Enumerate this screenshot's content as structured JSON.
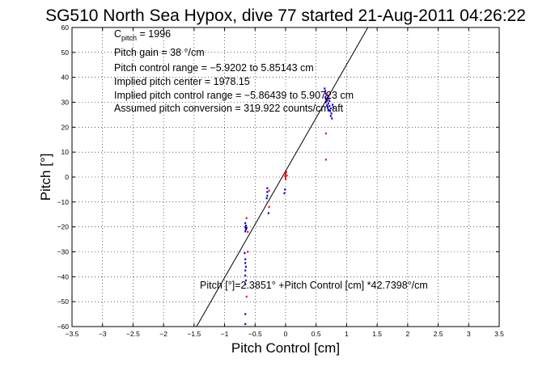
{
  "chart_data": {
    "type": "scatter",
    "title": "SG510 North Sea Hypox, dive 77 started 21-Aug-2011 04:26:22",
    "xlabel": "Pitch Control [cm]",
    "ylabel": "Pitch [°]",
    "xlim": [
      -3.5,
      3.5
    ],
    "ylim": [
      -60,
      60
    ],
    "xticks": [
      -3.5,
      -3,
      -2.5,
      -2,
      -1.5,
      -1,
      -0.5,
      0,
      0.5,
      1,
      1.5,
      2,
      2.5,
      3,
      3.5
    ],
    "yticks": [
      -60,
      -50,
      -40,
      -30,
      -20,
      -10,
      0,
      10,
      20,
      30,
      40,
      50,
      60
    ],
    "grid": true,
    "annotations": {
      "cpitch_prefix": "C",
      "cpitch_sub": "pitch",
      "cpitch_value": " = 1996",
      "gain": "Pitch gain = 38 °/cm",
      "control_range": "Pitch control range = −5.9202 to 5.85143 cm",
      "implied_center": "Implied pitch center = 1978.15",
      "implied_range": "Implied pitch control range = −5.86439 to 5.90723 cm",
      "conversion": "Assumed pitch conversion = 319.922 counts/cm aft"
    },
    "fit_label": "Pitch [°]=2.3851° +Pitch Control [cm] *42.7398°/cm",
    "fit": {
      "intercept": 2.3851,
      "slope": 42.7398,
      "color": "#000000"
    },
    "series": [
      {
        "color": "#0000cc",
        "points": [
          [
            -0.66,
            -18.5
          ],
          [
            -0.65,
            -19.5
          ],
          [
            -0.66,
            -20.2
          ],
          [
            -0.65,
            -21
          ],
          [
            -0.66,
            -21.8
          ],
          [
            -0.64,
            -20.5
          ],
          [
            -0.67,
            -30.5
          ],
          [
            -0.66,
            -33
          ],
          [
            -0.66,
            -34.5
          ],
          [
            -0.65,
            -36
          ],
          [
            -0.66,
            -37.5
          ],
          [
            -0.66,
            -39.5
          ],
          [
            -0.65,
            -41.5
          ],
          [
            -0.66,
            -43
          ],
          [
            -0.66,
            -55
          ],
          [
            -0.66,
            -59
          ],
          [
            -0.3,
            -4.5
          ],
          [
            -0.3,
            -6
          ],
          [
            -0.3,
            -7.5
          ],
          [
            -0.31,
            -8.5
          ],
          [
            -0.28,
            -14.5
          ],
          [
            -0.02,
            -6.5
          ],
          [
            -0.01,
            -5
          ],
          [
            0.64,
            35.5
          ],
          [
            0.65,
            34.5
          ],
          [
            0.66,
            33.5
          ],
          [
            0.67,
            32.8
          ],
          [
            0.65,
            32
          ],
          [
            0.66,
            31.3
          ],
          [
            0.68,
            30.6
          ],
          [
            0.66,
            30
          ],
          [
            0.7,
            32.5
          ],
          [
            0.71,
            31.5
          ],
          [
            0.72,
            30.5
          ],
          [
            0.7,
            29.5
          ],
          [
            0.72,
            28.5
          ],
          [
            0.74,
            27.5
          ],
          [
            0.73,
            26.5
          ],
          [
            0.75,
            25.5
          ],
          [
            0.74,
            24.5
          ],
          [
            0.76,
            23.5
          ],
          [
            0.68,
            28.8
          ],
          [
            0.69,
            27.8
          ],
          [
            0.71,
            26.8
          ],
          [
            0.78,
            28
          ],
          [
            0.77,
            29
          ]
        ]
      },
      {
        "color": "#ff0000",
        "points": [
          [
            -0.64,
            -16.5
          ],
          [
            -0.62,
            -22
          ],
          [
            -0.62,
            -30
          ],
          [
            -0.64,
            -48
          ],
          [
            -0.27,
            -5.5
          ],
          [
            -0.27,
            -12
          ],
          [
            0.0,
            0.0
          ],
          [
            0.0,
            1.2
          ],
          [
            0.01,
            2.0
          ],
          [
            0.0,
            -0.8
          ],
          [
            0.02,
            0.6
          ],
          [
            -0.01,
            0.4
          ],
          [
            0.66,
            17.5
          ],
          [
            0.66,
            7.0
          ],
          [
            0.68,
            33
          ],
          [
            0.69,
            31
          ]
        ]
      }
    ]
  }
}
